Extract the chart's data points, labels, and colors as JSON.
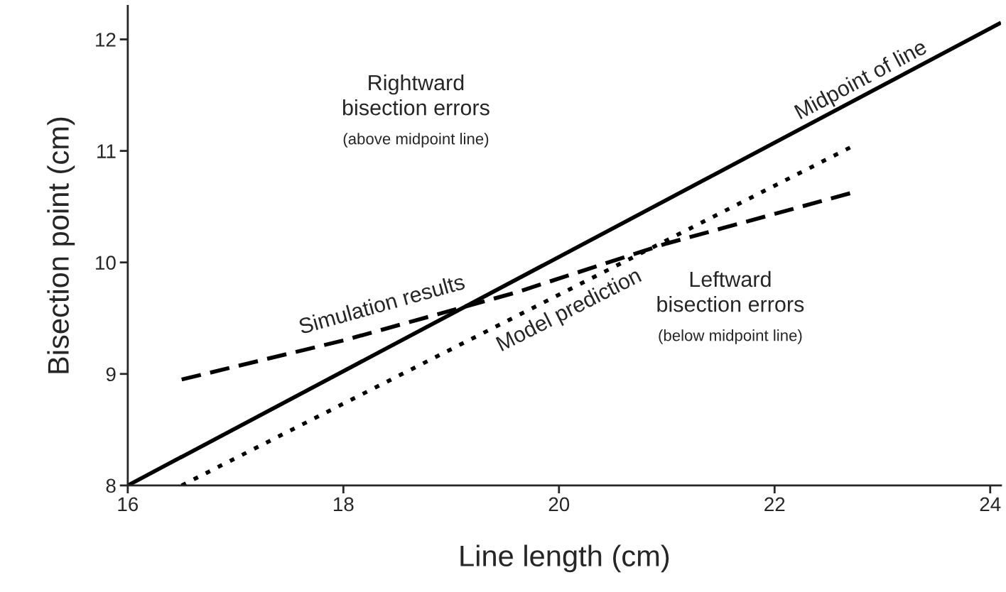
{
  "chart_data": {
    "type": "line",
    "xlabel": "Line length (cm)",
    "ylabel": "Bisection point (cm)",
    "xlim": [
      16,
      24.1
    ],
    "ylim": [
      8,
      12.3
    ],
    "xticks": [
      16,
      18,
      20,
      22,
      24
    ],
    "yticks": [
      8,
      9,
      10,
      11,
      12
    ],
    "grid": false,
    "legend": false,
    "series": [
      {
        "name": "Midpoint of line",
        "color": "#000000",
        "line_style": "solid",
        "x": [
          16,
          24.1
        ],
        "values": [
          8,
          12.15
        ]
      },
      {
        "name": "Simulation results",
        "color": "#000000",
        "line_style": "dashed",
        "x": [
          16.5,
          18,
          19.6,
          21,
          22.7
        ],
        "values": [
          8.95,
          9.3,
          9.73,
          10.17,
          10.62
        ]
      },
      {
        "name": "Model prediction",
        "color": "#000000",
        "line_style": "dotted",
        "x": [
          16.5,
          22.7
        ],
        "values": [
          8.0,
          11.03
        ]
      }
    ],
    "annotations": [
      "Rightward\nbisection errors",
      "(above midpoint line)",
      "Leftward\nbisection errors",
      "(below midpoint line)"
    ]
  }
}
